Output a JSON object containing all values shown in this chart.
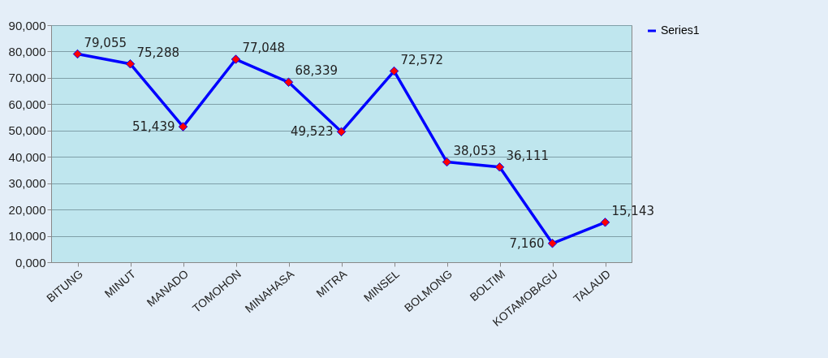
{
  "chart_data": {
    "type": "line",
    "categories": [
      "BITUNG",
      "MINUT",
      "MANADO",
      "TOMOHON",
      "MINAHASA",
      "MITRA",
      "MINSEL",
      "BOLMONG",
      "BOLTIM",
      "KOTAMOBAGU",
      "TALAUD"
    ],
    "series": [
      {
        "name": "Series1",
        "color": "#0000ff",
        "values": [
          79055,
          75288,
          51439,
          77048,
          68339,
          49523,
          72572,
          38053,
          36111,
          7160,
          15143
        ],
        "value_labels": [
          "79,055",
          "75,288",
          "51,439",
          "77,048",
          "68,339",
          "49,523",
          "72,572",
          "38,053",
          "36,111",
          "7,160",
          "15,143"
        ]
      }
    ],
    "ylim": [
      0,
      90000
    ],
    "yticks": [
      {
        "value": 0,
        "label": "0,000"
      },
      {
        "value": 10000,
        "label": "10,000"
      },
      {
        "value": 20000,
        "label": "20,000"
      },
      {
        "value": 30000,
        "label": "30,000"
      },
      {
        "value": 40000,
        "label": "40,000"
      },
      {
        "value": 50000,
        "label": "50,000"
      },
      {
        "value": 60000,
        "label": "60,000"
      },
      {
        "value": 70000,
        "label": "70,000"
      },
      {
        "value": 80000,
        "label": "80,000"
      },
      {
        "value": 90000,
        "label": "90,000"
      }
    ],
    "grid": "y",
    "legend": "right",
    "marker": "diamond",
    "line_style": "solid"
  }
}
